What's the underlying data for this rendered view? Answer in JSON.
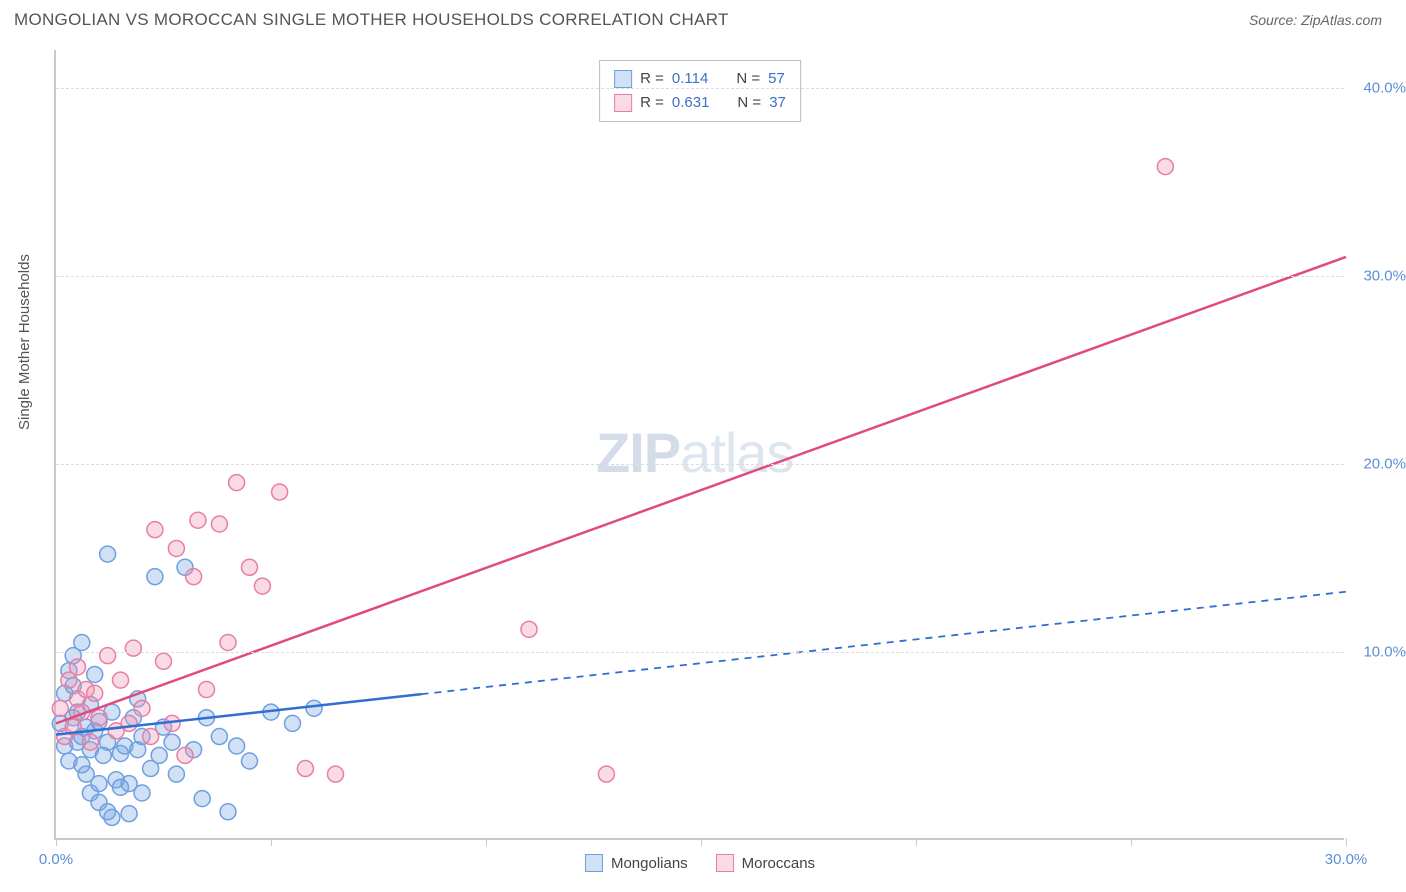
{
  "header": {
    "title": "MONGOLIAN VS MOROCCAN SINGLE MOTHER HOUSEHOLDS CORRELATION CHART",
    "source": "Source: ZipAtlas.com"
  },
  "watermark": {
    "zip": "ZIP",
    "atlas": "atlas"
  },
  "y_axis": {
    "label": "Single Mother Households"
  },
  "chart": {
    "type": "scatter",
    "x_range": [
      0,
      30
    ],
    "y_range": [
      0,
      42
    ],
    "y_ticks": [
      10,
      20,
      30,
      40
    ],
    "y_tick_labels": [
      "10.0%",
      "20.0%",
      "30.0%",
      "40.0%"
    ],
    "x_tick_positions": [
      0,
      5,
      10,
      15,
      20,
      25,
      30
    ],
    "x_tick_labels": {
      "0": "0.0%",
      "30": "30.0%"
    },
    "marker_radius": 8,
    "tick_label_color": "#5b8fd6",
    "grid_color": "#dcdcdc",
    "axis_color": "#c9c9c9",
    "background_color": "#ffffff"
  },
  "series": {
    "mongolians": {
      "label": "Mongolians",
      "fill": "rgba(120,165,225,0.35)",
      "stroke": "#6f9fe0",
      "line_color": "#2f6fd0",
      "line_width": 2.5,
      "solid_end_x": 8.5,
      "trend": {
        "x1": 0,
        "y1": 5.6,
        "x2": 30,
        "y2": 13.2
      },
      "R": "0.114",
      "N": "57",
      "points": [
        [
          0.1,
          6.2
        ],
        [
          0.2,
          5.0
        ],
        [
          0.2,
          7.8
        ],
        [
          0.3,
          4.2
        ],
        [
          0.3,
          9.0
        ],
        [
          0.4,
          6.5
        ],
        [
          0.4,
          8.2
        ],
        [
          0.5,
          5.2
        ],
        [
          0.5,
          6.8
        ],
        [
          0.6,
          4.0
        ],
        [
          0.6,
          5.5
        ],
        [
          0.6,
          10.5
        ],
        [
          0.7,
          3.5
        ],
        [
          0.7,
          6.0
        ],
        [
          0.8,
          2.5
        ],
        [
          0.8,
          4.8
        ],
        [
          0.8,
          7.2
        ],
        [
          0.9,
          5.8
        ],
        [
          0.9,
          8.8
        ],
        [
          1.0,
          3.0
        ],
        [
          1.0,
          6.3
        ],
        [
          1.0,
          2.0
        ],
        [
          1.1,
          4.5
        ],
        [
          1.2,
          5.2
        ],
        [
          1.2,
          1.5
        ],
        [
          1.3,
          1.2
        ],
        [
          1.3,
          6.8
        ],
        [
          1.4,
          3.2
        ],
        [
          1.5,
          2.8
        ],
        [
          1.5,
          4.6
        ],
        [
          1.6,
          5.0
        ],
        [
          1.7,
          3.0
        ],
        [
          1.7,
          1.4
        ],
        [
          1.8,
          6.5
        ],
        [
          1.9,
          7.5
        ],
        [
          1.9,
          4.8
        ],
        [
          2.0,
          2.5
        ],
        [
          2.0,
          5.5
        ],
        [
          2.2,
          3.8
        ],
        [
          2.3,
          14.0
        ],
        [
          2.4,
          4.5
        ],
        [
          2.5,
          6.0
        ],
        [
          2.7,
          5.2
        ],
        [
          2.8,
          3.5
        ],
        [
          3.0,
          14.5
        ],
        [
          3.2,
          4.8
        ],
        [
          3.4,
          2.2
        ],
        [
          3.5,
          6.5
        ],
        [
          3.8,
          5.5
        ],
        [
          4.0,
          1.5
        ],
        [
          4.2,
          5.0
        ],
        [
          4.5,
          4.2
        ],
        [
          5.0,
          6.8
        ],
        [
          5.5,
          6.2
        ],
        [
          6.0,
          7.0
        ],
        [
          1.2,
          15.2
        ],
        [
          0.4,
          9.8
        ]
      ]
    },
    "moroccans": {
      "label": "Moroccans",
      "fill": "rgba(240,150,180,0.35)",
      "stroke": "#e77fa3",
      "line_color": "#e24a7d",
      "line_width": 2.5,
      "trend": {
        "x1": 0,
        "y1": 6.2,
        "x2": 30,
        "y2": 31.0
      },
      "R": "0.631",
      "N": "37",
      "points": [
        [
          0.1,
          7.0
        ],
        [
          0.2,
          5.5
        ],
        [
          0.3,
          8.5
        ],
        [
          0.4,
          6.0
        ],
        [
          0.5,
          7.5
        ],
        [
          0.5,
          9.2
        ],
        [
          0.6,
          6.8
        ],
        [
          0.7,
          8.0
        ],
        [
          0.8,
          5.2
        ],
        [
          0.9,
          7.8
        ],
        [
          1.0,
          6.5
        ],
        [
          1.2,
          9.8
        ],
        [
          1.4,
          5.8
        ],
        [
          1.5,
          8.5
        ],
        [
          1.7,
          6.2
        ],
        [
          1.8,
          10.2
        ],
        [
          2.0,
          7.0
        ],
        [
          2.2,
          5.5
        ],
        [
          2.3,
          16.5
        ],
        [
          2.5,
          9.5
        ],
        [
          2.7,
          6.2
        ],
        [
          2.8,
          15.5
        ],
        [
          3.0,
          4.5
        ],
        [
          3.2,
          14.0
        ],
        [
          3.3,
          17.0
        ],
        [
          3.5,
          8.0
        ],
        [
          3.8,
          16.8
        ],
        [
          4.0,
          10.5
        ],
        [
          4.2,
          19.0
        ],
        [
          4.5,
          14.5
        ],
        [
          4.8,
          13.5
        ],
        [
          5.2,
          18.5
        ],
        [
          5.8,
          3.8
        ],
        [
          6.5,
          3.5
        ],
        [
          11.0,
          11.2
        ],
        [
          12.8,
          3.5
        ],
        [
          25.8,
          35.8
        ]
      ]
    }
  },
  "stats_box": {
    "R_label": "R =",
    "N_label": "N ="
  },
  "legend": {
    "mongolians": "Mongolians",
    "moroccans": "Moroccans"
  }
}
